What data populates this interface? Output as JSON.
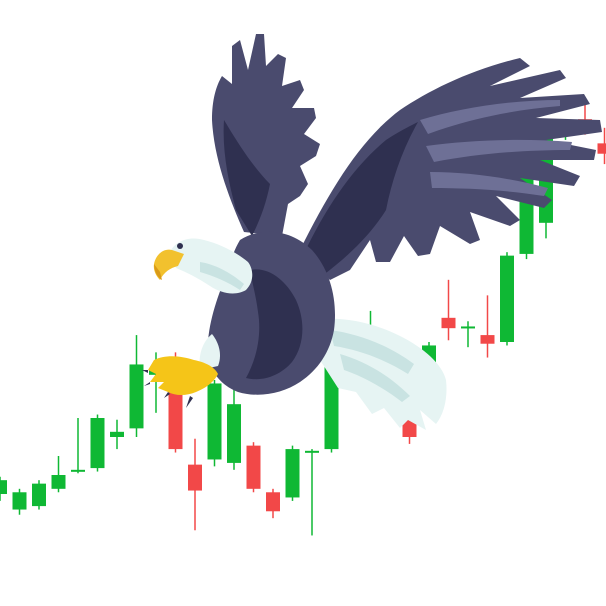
{
  "illustration": {
    "subject": "eagle-over-candlestick-chart",
    "icon": "eagle-icon"
  },
  "colors": {
    "background": "#ffffff",
    "bullish": "#0fb834",
    "bearish": "#f24848",
    "wick": "#888888",
    "eagle_body": "#4a4b6e",
    "eagle_dark": "#2f3050",
    "eagle_feather_light": "#6e7096",
    "eagle_white": "#e6f4f3",
    "eagle_beak": "#f2c12e",
    "eagle_talon": "#f5c518"
  },
  "chart_data": {
    "type": "candlestick",
    "candles": [
      {
        "i": 0,
        "open": 24,
        "close": 32,
        "high": 34,
        "low": 20
      },
      {
        "i": 1,
        "open": 15,
        "close": 25,
        "high": 27,
        "low": 12
      },
      {
        "i": 2,
        "open": 17,
        "close": 30,
        "high": 32,
        "low": 15
      },
      {
        "i": 3,
        "open": 27,
        "close": 35,
        "high": 46,
        "low": 25
      },
      {
        "i": 4,
        "open": 37,
        "close": 38,
        "high": 68,
        "low": 36
      },
      {
        "i": 5,
        "open": 39,
        "close": 68,
        "high": 70,
        "low": 37
      },
      {
        "i": 6,
        "open": 57,
        "close": 60,
        "high": 67,
        "low": 50
      },
      {
        "i": 7,
        "open": 62,
        "close": 99,
        "high": 116,
        "low": 57
      },
      {
        "i": 8,
        "open": 93,
        "close": 96,
        "high": 106,
        "low": 71
      },
      {
        "i": 9,
        "open": 93,
        "close": 50,
        "high": 106,
        "low": 48
      },
      {
        "i": 10,
        "open": 41,
        "close": 26,
        "high": 56,
        "low": 3
      },
      {
        "i": 11,
        "open": 44,
        "close": 88,
        "high": 90,
        "low": 40
      },
      {
        "i": 12,
        "open": 42,
        "close": 76,
        "high": 98,
        "low": 38
      },
      {
        "i": 13,
        "open": 52,
        "close": 27,
        "high": 54,
        "low": 25
      },
      {
        "i": 14,
        "open": 25,
        "close": 14,
        "high": 27,
        "low": 10
      },
      {
        "i": 15,
        "open": 22,
        "close": 50,
        "high": 52,
        "low": 20
      },
      {
        "i": 16,
        "open": 48,
        "close": 49,
        "high": 50,
        "low": 0
      },
      {
        "i": 17,
        "open": 50,
        "close": 118,
        "high": 120,
        "low": 48
      },
      {
        "i": 18,
        "open": 92,
        "close": 106,
        "high": 114,
        "low": 88
      },
      {
        "i": 19,
        "open": 102,
        "close": 112,
        "high": 130,
        "low": 96
      },
      {
        "i": 20,
        "open": 107,
        "close": 76,
        "high": 110,
        "low": 72
      },
      {
        "i": 21,
        "open": 67,
        "close": 57,
        "high": 69,
        "low": 53
      },
      {
        "i": 22,
        "open": 77,
        "close": 110,
        "high": 112,
        "low": 75
      },
      {
        "i": 23,
        "open": 126,
        "close": 120,
        "high": 148,
        "low": 113
      },
      {
        "i": 24,
        "open": 120,
        "close": 121,
        "high": 124,
        "low": 109
      },
      {
        "i": 25,
        "open": 116,
        "close": 111,
        "high": 139,
        "low": 103
      },
      {
        "i": 26,
        "open": 112,
        "close": 162,
        "high": 164,
        "low": 110
      },
      {
        "i": 27,
        "open": 163,
        "close": 223,
        "high": 233,
        "low": 160
      },
      {
        "i": 28,
        "open": 181,
        "close": 238,
        "high": 240,
        "low": 172
      },
      {
        "i": 29,
        "open": 238,
        "close": 239,
        "high": 240,
        "low": 229
      },
      {
        "i": 30,
        "open": 241,
        "close": 234,
        "high": 250,
        "low": 232
      },
      {
        "i": 31,
        "open": 227,
        "close": 221,
        "high": 236,
        "low": 215
      }
    ],
    "ylim": [
      -20,
      310
    ]
  }
}
